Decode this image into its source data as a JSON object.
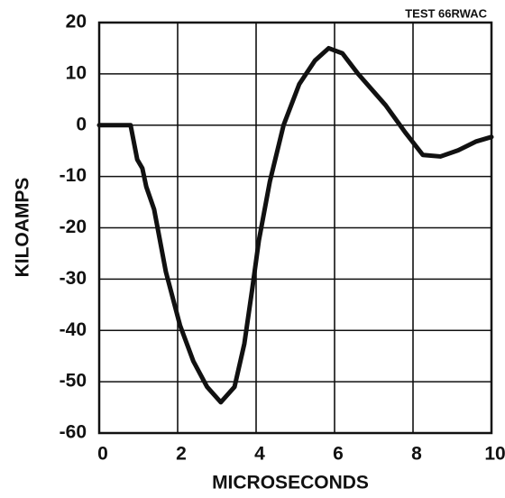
{
  "chart_data": {
    "type": "line",
    "annotation": "TEST 66RWAC",
    "x_label": "MICROSECONDS",
    "y_label": "KILOAMPS",
    "xlim": [
      0,
      10
    ],
    "xticks": [
      0,
      2,
      4,
      6,
      8,
      10
    ],
    "ylim": [
      -60,
      20
    ],
    "yticks": [
      20,
      10,
      0,
      -10,
      -20,
      -30,
      -40,
      -50,
      -60
    ],
    "grid": true,
    "series": [
      {
        "color": "#111111",
        "x": [
          0,
          0.8,
          0.97,
          1.1,
          1.2,
          1.4,
          1.7,
          2.06,
          2.4,
          2.75,
          3.1,
          3.45,
          3.7,
          3.9,
          4.07,
          4.35,
          4.7,
          5.1,
          5.5,
          5.85,
          6.2,
          6.6,
          7.3,
          7.8,
          8.25,
          8.7,
          9.15,
          9.6,
          10
        ],
        "values": [
          0,
          0,
          -6.7,
          -8.4,
          -12,
          -16.4,
          -28.6,
          -39,
          -46,
          -51,
          -54,
          -51,
          -42.6,
          -32,
          -22.5,
          -11,
          0,
          8,
          12.6,
          15,
          14,
          10,
          3.9,
          -1.4,
          -5.8,
          -6.1,
          -4.9,
          -3.2,
          -2.3
        ]
      }
    ]
  }
}
